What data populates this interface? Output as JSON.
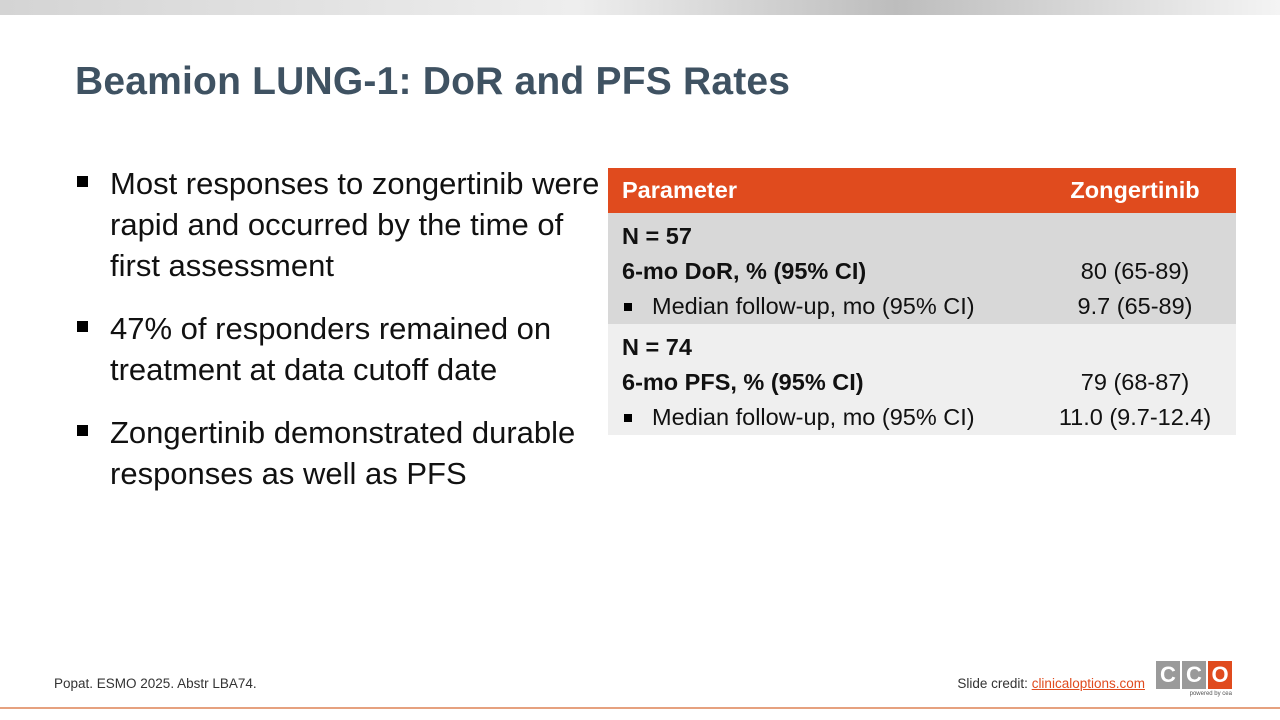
{
  "title": "Beamion LUNG-1: DoR and PFS Rates",
  "bullets": [
    "Most responses to zongertinib were rapid and occurred by the time of first assessment",
    "47% of responders remained on treatment at data cutoff date",
    "Zongertinib demonstrated durable responses as well as PFS"
  ],
  "table": {
    "headers": {
      "parameter": "Parameter",
      "value": "Zongertinib"
    },
    "group1": {
      "n_label": "N = 57",
      "row1": {
        "label": "6-mo DoR, % (95% CI)",
        "value": "80 (65-89)"
      },
      "row2": {
        "label": "Median follow-up, mo (95% CI)",
        "value": "9.7 (65-89)"
      }
    },
    "group2": {
      "n_label": "N = 74",
      "row1": {
        "label": "6-mo PFS, % (95% CI)",
        "value": "79 (68-87)"
      },
      "row2": {
        "label": "Median follow-up, mo (95% CI)",
        "value": "11.0 (9.7-12.4)"
      }
    }
  },
  "footer": {
    "reference": "Popat. ESMO 2025. Abstr LBA74.",
    "credit_label": "Slide credit: ",
    "credit_link": "clinicaloptions.com"
  },
  "logo": {
    "letters": [
      "C",
      "C",
      "O"
    ],
    "tagline": "powered by cea"
  },
  "colors": {
    "accent": "#e04b1e",
    "title": "#3f5262",
    "row_dark": "#d8d8d8",
    "row_light": "#efefef"
  }
}
